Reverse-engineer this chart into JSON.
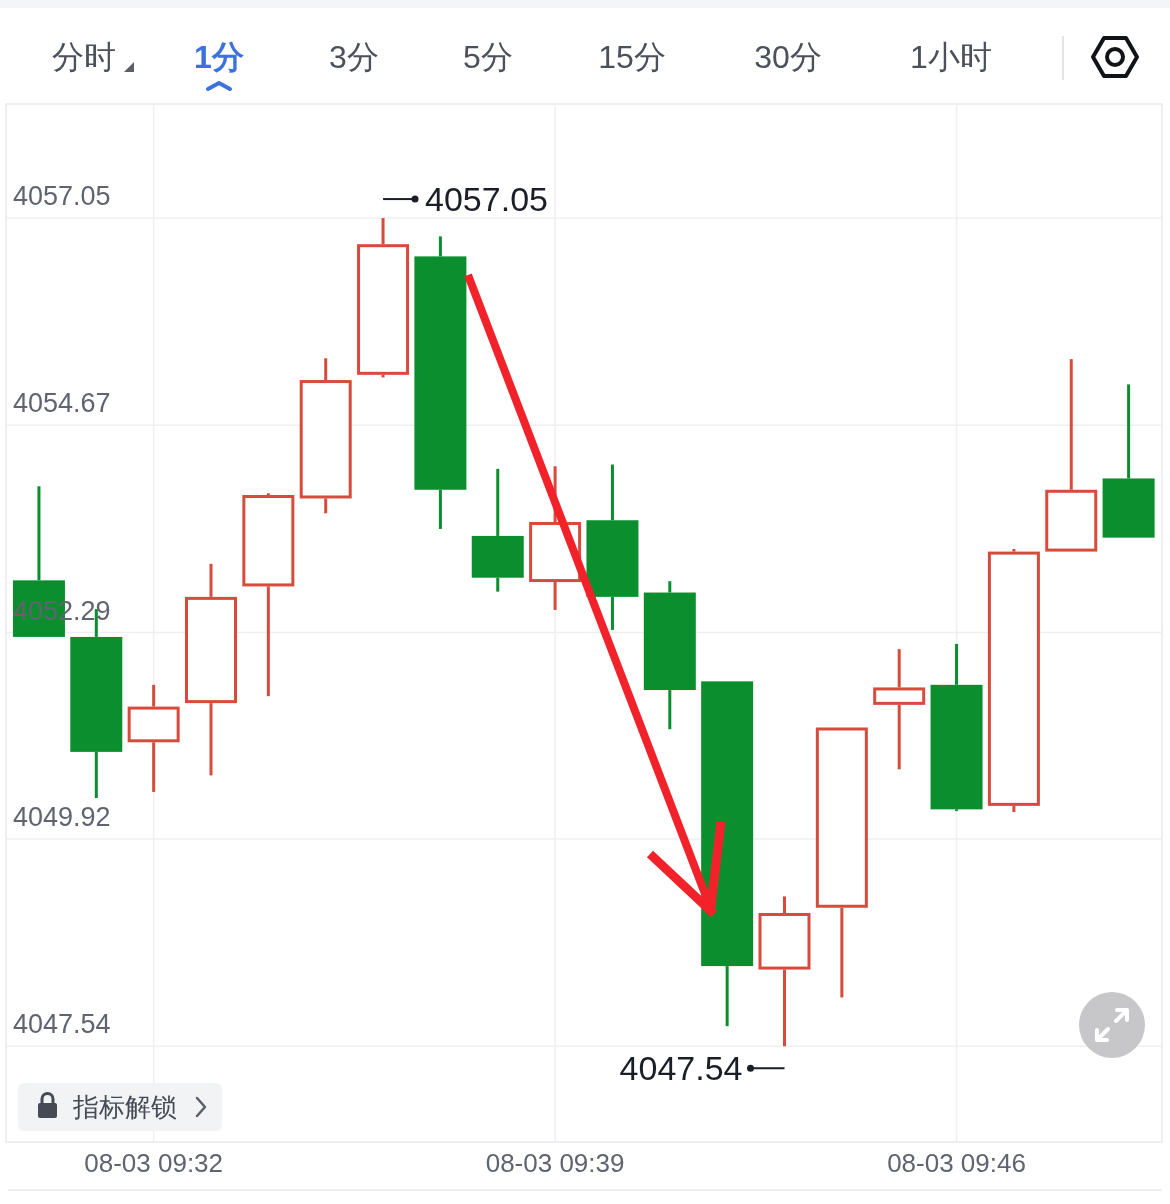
{
  "chart_data": {
    "type": "candlestick",
    "categories": [
      null,
      null,
      "08-03 09:32",
      null,
      null,
      null,
      null,
      null,
      null,
      "08-03 09:39",
      null,
      null,
      null,
      null,
      null,
      null,
      "08-03 09:46",
      null,
      null,
      null
    ],
    "ohlc": [
      [
        4052.89,
        4053.97,
        4052.24,
        4052.24
      ],
      [
        4052.24,
        4052.56,
        4050.39,
        4050.92
      ],
      [
        4051.03,
        4051.69,
        4050.46,
        4051.44
      ],
      [
        4051.48,
        4053.08,
        4050.65,
        4052.7
      ],
      [
        4052.82,
        4053.89,
        4051.56,
        4053.87
      ],
      [
        4053.83,
        4055.44,
        4053.66,
        4055.19
      ],
      [
        4055.25,
        4057.05,
        4055.22,
        4056.75
      ],
      [
        4056.61,
        4056.84,
        4053.48,
        4053.93
      ],
      [
        4053.4,
        4054.17,
        4052.76,
        4052.92
      ],
      [
        4052.87,
        4054.2,
        4052.55,
        4053.56
      ],
      [
        4053.58,
        4054.22,
        4052.32,
        4052.7
      ],
      [
        4052.75,
        4052.88,
        4051.18,
        4051.63
      ],
      [
        4051.73,
        4051.73,
        4047.77,
        4048.46
      ],
      [
        4048.42,
        4049.26,
        4047.54,
        4049.07
      ],
      [
        4049.13,
        4051.2,
        4048.1,
        4051.2
      ],
      [
        4051.46,
        4052.1,
        4050.72,
        4051.66
      ],
      [
        4051.69,
        4052.16,
        4050.24,
        4050.26
      ],
      [
        4050.3,
        4053.25,
        4050.23,
        4053.22
      ],
      [
        4053.22,
        4055.43,
        4053.22,
        4053.93
      ],
      [
        4054.06,
        4055.14,
        4053.38,
        4053.38
      ]
    ],
    "colors": [
      "#0b8f2e",
      "#0b8f2e",
      "#d84a3c",
      "#d84a3c",
      "#d84a3c",
      "#d84a3c",
      "#d84a3c",
      "#0b8f2e",
      "#0b8f2e",
      "#d84a3c",
      "#0b8f2e",
      "#0b8f2e",
      "#0b8f2e",
      "#d84a3c",
      "#d84a3c",
      "#d84a3c",
      "#0b8f2e",
      "#d84a3c",
      "#d84a3c",
      "#0b8f2e"
    ],
    "ylim": [
      4046.44,
      4058.36
    ],
    "yticks": [
      4047.54,
      4049.92,
      4052.29,
      4054.67,
      4057.05
    ],
    "grid": true,
    "annotations": [
      "分时",
      "1分",
      "3分",
      "5分",
      "15分",
      "30分",
      "1小时",
      "指标解锁",
      "4057.05",
      "4047.54"
    ]
  }
}
